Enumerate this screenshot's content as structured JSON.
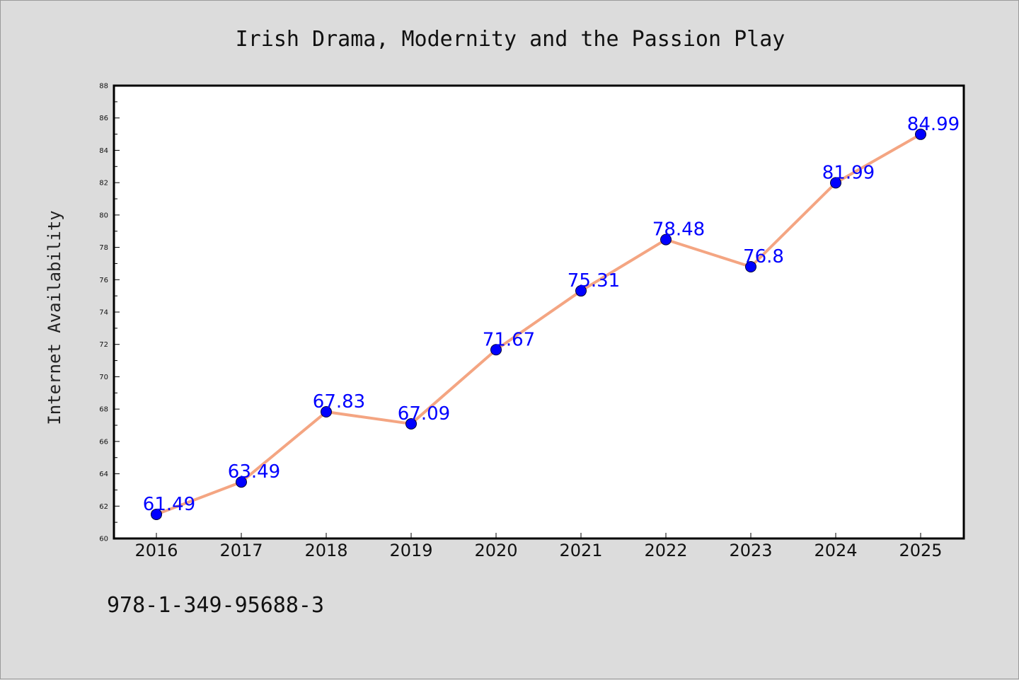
{
  "chart_data": {
    "type": "line",
    "title": "Irish Drama, Modernity and the Passion Play",
    "xlabel": "",
    "ylabel": "Internet Availability",
    "categories": [
      "2016",
      "2017",
      "2018",
      "2019",
      "2020",
      "2021",
      "2022",
      "2023",
      "2024",
      "2025"
    ],
    "series": [
      {
        "values": [
          61.49,
          63.49,
          67.83,
          67.09,
          71.67,
          75.31,
          78.48,
          76.8,
          81.99,
          84.99
        ],
        "data_labels": [
          "61.49",
          "63.49",
          "67.83",
          "67.09",
          "71.67",
          "75.31",
          "78.48",
          "76.8",
          "81.99",
          "84.99"
        ],
        "line_color": "#f4a582",
        "marker_color": "#0000ff",
        "label_color": "#0000ff"
      }
    ],
    "ylim": [
      60,
      88
    ],
    "yticks": [
      60,
      62,
      64,
      66,
      68,
      70,
      72,
      74,
      76,
      78,
      80,
      82,
      84,
      86,
      88
    ],
    "grid": false,
    "legend": "none"
  },
  "footnote": "978-1-349-95688-3"
}
